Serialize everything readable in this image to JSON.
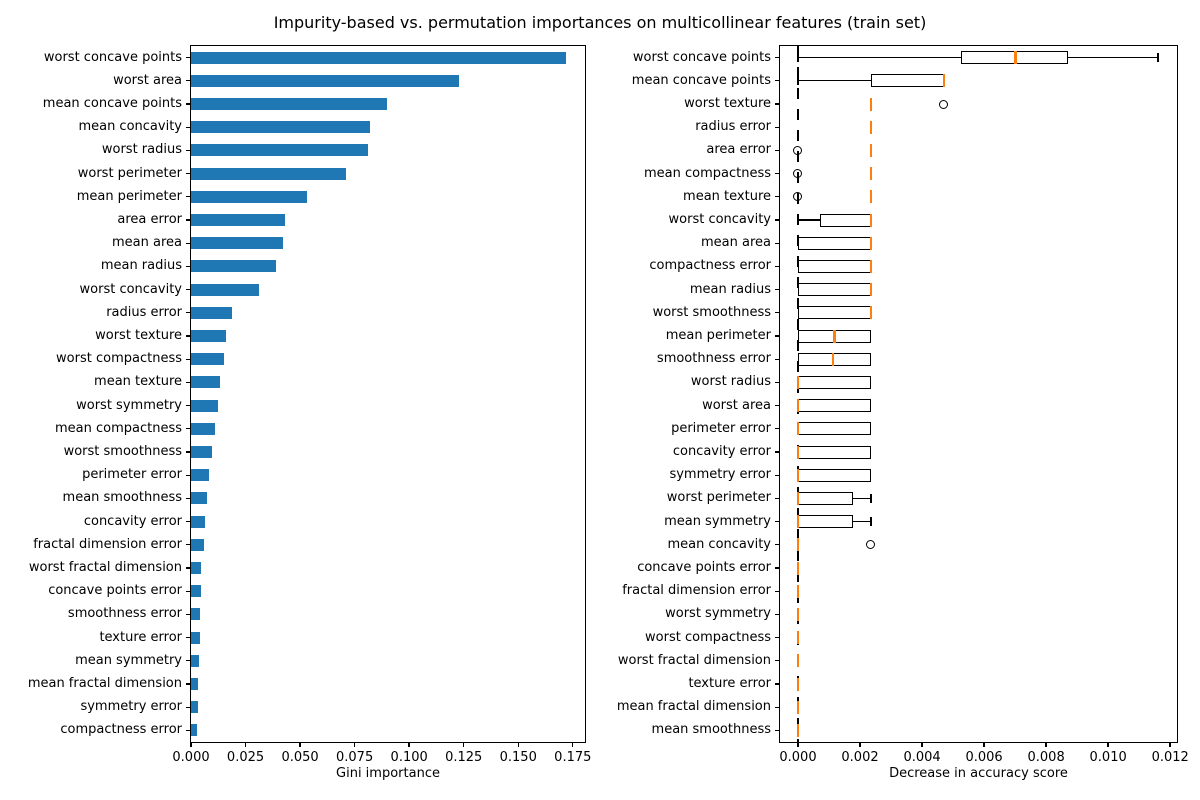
{
  "title": "Impurity-based vs. permutation importances on multicollinear features (train set)",
  "colors": {
    "bar": "#1f77b4",
    "median": "#ff7f0e",
    "axis": "#000000"
  },
  "chart_data": [
    {
      "type": "bar",
      "orientation": "horizontal",
      "xlabel": "Gini importance",
      "xlim": [
        0,
        0.1806
      ],
      "grid": false,
      "xtick_values": [
        0,
        0.025,
        0.05,
        0.075,
        0.1,
        0.125,
        0.15,
        0.175
      ],
      "xtick_labels": [
        "0.000",
        "0.025",
        "0.050",
        "0.075",
        "0.100",
        "0.125",
        "0.150",
        "0.175"
      ],
      "categories": [
        "worst concave points",
        "worst area",
        "mean concave points",
        "mean concavity",
        "worst radius",
        "worst perimeter",
        "mean perimeter",
        "area error",
        "mean area",
        "mean radius",
        "worst concavity",
        "radius error",
        "worst texture",
        "worst compactness",
        "mean texture",
        "worst symmetry",
        "mean compactness",
        "worst smoothness",
        "perimeter error",
        "mean smoothness",
        "concavity error",
        "fractal dimension error",
        "worst fractal dimension",
        "concave points error",
        "smoothness error",
        "texture error",
        "mean symmetry",
        "mean fractal dimension",
        "symmetry error",
        "compactness error"
      ],
      "values": [
        0.172,
        0.123,
        0.09,
        0.082,
        0.081,
        0.071,
        0.053,
        0.043,
        0.042,
        0.039,
        0.031,
        0.019,
        0.016,
        0.015,
        0.0135,
        0.0123,
        0.011,
        0.0095,
        0.0082,
        0.0073,
        0.0065,
        0.0058,
        0.0047,
        0.0045,
        0.0041,
        0.004,
        0.0035,
        0.0034,
        0.003,
        0.0029
      ]
    },
    {
      "type": "boxplot",
      "orientation": "horizontal",
      "xlabel": "Decrease in accuracy score",
      "xlim": [
        -0.00058,
        0.01222
      ],
      "grid": false,
      "zero_line_x": 0,
      "xtick_values": [
        0,
        0.002,
        0.004,
        0.006,
        0.008,
        0.01,
        0.012
      ],
      "xtick_labels": [
        "0.000",
        "0.002",
        "0.004",
        "0.006",
        "0.008",
        "0.010",
        "0.012"
      ],
      "rows": [
        {
          "label": "worst concave points",
          "q1": 0.00524,
          "med": 0.00701,
          "q3": 0.00871,
          "wlo": 0,
          "whi": 0.01161,
          "caps": "both",
          "outliers": []
        },
        {
          "label": "mean concave points",
          "q1": 0.00235,
          "med": 0.0047,
          "q3": 0.0047,
          "wlo": 0,
          "whi": 0.0047,
          "caps": "lo",
          "outliers": []
        },
        {
          "label": "worst texture",
          "q1": 0.00235,
          "med": 0.00235,
          "q3": 0.00235,
          "wlo": 0.00235,
          "whi": 0.00235,
          "caps": "none",
          "outliers": [
            0.0047
          ]
        },
        {
          "label": "radius error",
          "q1": 0.00235,
          "med": 0.00235,
          "q3": 0.00235,
          "wlo": 0.00235,
          "whi": 0.00235,
          "caps": "none",
          "outliers": []
        },
        {
          "label": "area error",
          "q1": 0.00235,
          "med": 0.00235,
          "q3": 0.00235,
          "wlo": 0.00235,
          "whi": 0.00235,
          "caps": "none",
          "outliers": [
            0
          ]
        },
        {
          "label": "mean compactness",
          "q1": 0.00235,
          "med": 0.00235,
          "q3": 0.00235,
          "wlo": 0.00235,
          "whi": 0.00235,
          "caps": "none",
          "outliers": [
            0
          ]
        },
        {
          "label": "mean texture",
          "q1": 0.00235,
          "med": 0.00235,
          "q3": 0.00235,
          "wlo": 0.00235,
          "whi": 0.00235,
          "caps": "none",
          "outliers": [
            0
          ]
        },
        {
          "label": "worst concavity",
          "q1": 0.0007,
          "med": 0.00235,
          "q3": 0.00235,
          "wlo": 0,
          "whi": 0.00235,
          "caps": "lo",
          "outliers": []
        },
        {
          "label": "mean area",
          "q1": 0,
          "med": 0.00235,
          "q3": 0.00235,
          "wlo": 0,
          "whi": 0.00235,
          "caps": "none",
          "outliers": []
        },
        {
          "label": "compactness error",
          "q1": 0,
          "med": 0.00235,
          "q3": 0.00235,
          "wlo": 0,
          "whi": 0.00235,
          "caps": "none",
          "outliers": []
        },
        {
          "label": "mean radius",
          "q1": 0,
          "med": 0.00235,
          "q3": 0.00235,
          "wlo": 0,
          "whi": 0.00235,
          "caps": "none",
          "outliers": []
        },
        {
          "label": "worst smoothness",
          "q1": 0,
          "med": 0.00235,
          "q3": 0.00235,
          "wlo": 0,
          "whi": 0.00235,
          "caps": "none",
          "outliers": []
        },
        {
          "label": "mean perimeter",
          "q1": 0,
          "med": 0.00118,
          "q3": 0.00235,
          "wlo": 0,
          "whi": 0.00235,
          "caps": "none",
          "outliers": []
        },
        {
          "label": "smoothness error",
          "q1": 0,
          "med": 0.00112,
          "q3": 0.00235,
          "wlo": 0,
          "whi": 0.00235,
          "caps": "none",
          "outliers": []
        },
        {
          "label": "worst radius",
          "q1": 0,
          "med": 0,
          "q3": 0.00235,
          "wlo": 0,
          "whi": 0.00235,
          "caps": "none",
          "outliers": []
        },
        {
          "label": "worst area",
          "q1": 0,
          "med": 0,
          "q3": 0.00235,
          "wlo": 0,
          "whi": 0.00235,
          "caps": "none",
          "outliers": []
        },
        {
          "label": "perimeter error",
          "q1": 0,
          "med": 0,
          "q3": 0.00235,
          "wlo": 0,
          "whi": 0.00235,
          "caps": "none",
          "outliers": []
        },
        {
          "label": "concavity error",
          "q1": 0,
          "med": 0,
          "q3": 0.00235,
          "wlo": 0,
          "whi": 0.00235,
          "caps": "none",
          "outliers": []
        },
        {
          "label": "symmetry error",
          "q1": 0,
          "med": 0,
          "q3": 0.00235,
          "wlo": 0,
          "whi": 0.00235,
          "caps": "none",
          "outliers": []
        },
        {
          "label": "worst perimeter",
          "q1": 0,
          "med": 0,
          "q3": 0.00176,
          "wlo": 0,
          "whi": 0.00235,
          "caps": "hi",
          "outliers": []
        },
        {
          "label": "mean symmetry",
          "q1": 0,
          "med": 0,
          "q3": 0.00176,
          "wlo": 0,
          "whi": 0.00235,
          "caps": "hi",
          "outliers": []
        },
        {
          "label": "mean concavity",
          "q1": 0,
          "med": 0,
          "q3": 0,
          "wlo": 0,
          "whi": 0,
          "caps": "none",
          "outliers": [
            0.00235
          ]
        },
        {
          "label": "concave points error",
          "q1": 0,
          "med": 0,
          "q3": 0,
          "wlo": 0,
          "whi": 0,
          "caps": "none",
          "outliers": []
        },
        {
          "label": "fractal dimension error",
          "q1": 0,
          "med": 0,
          "q3": 0,
          "wlo": 0,
          "whi": 0,
          "caps": "none",
          "outliers": []
        },
        {
          "label": "worst symmetry",
          "q1": 0,
          "med": 0,
          "q3": 0,
          "wlo": 0,
          "whi": 0,
          "caps": "none",
          "outliers": []
        },
        {
          "label": "worst compactness",
          "q1": 0,
          "med": 0,
          "q3": 0,
          "wlo": 0,
          "whi": 0,
          "caps": "none",
          "outliers": []
        },
        {
          "label": "worst fractal dimension",
          "q1": 0,
          "med": 0,
          "q3": 0,
          "wlo": 0,
          "whi": 0,
          "caps": "none",
          "outliers": []
        },
        {
          "label": "texture error",
          "q1": 0,
          "med": 0,
          "q3": 0,
          "wlo": 0,
          "whi": 0,
          "caps": "none",
          "outliers": []
        },
        {
          "label": "mean fractal dimension",
          "q1": 0,
          "med": 0,
          "q3": 0,
          "wlo": 0,
          "whi": 0,
          "caps": "none",
          "outliers": []
        },
        {
          "label": "mean smoothness",
          "q1": 0,
          "med": 0,
          "q3": 0,
          "wlo": 0,
          "whi": 0,
          "caps": "none",
          "outliers": []
        }
      ]
    }
  ]
}
